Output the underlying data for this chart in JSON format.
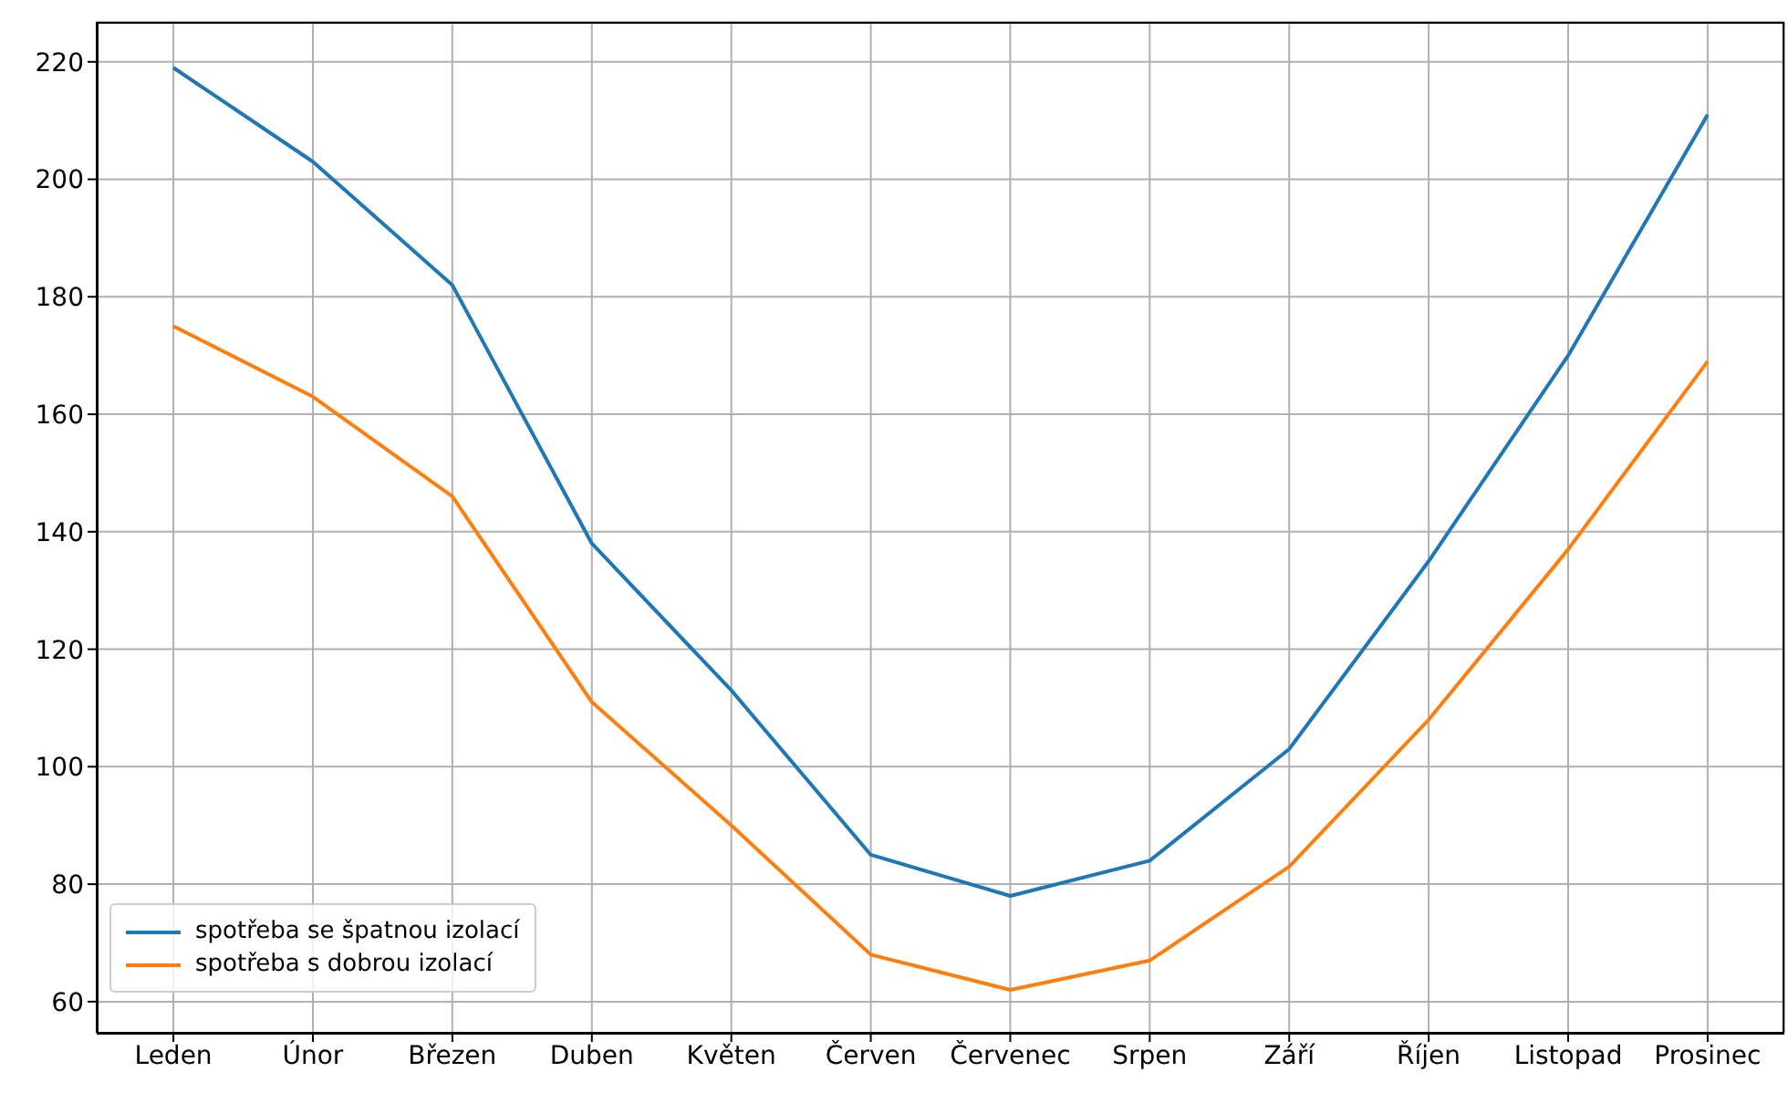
{
  "chart_data": {
    "type": "line",
    "categories": [
      "Leden",
      "Únor",
      "Březen",
      "Duben",
      "Květen",
      "Červen",
      "Červenec",
      "Srpen",
      "Září",
      "Říjen",
      "Listopad",
      "Prosinec"
    ],
    "series": [
      {
        "name": "spotřeba se špatnou izolací",
        "color": "#1f77b4",
        "values": [
          219,
          203,
          182,
          138,
          113,
          85,
          78,
          84,
          103,
          135,
          170,
          211
        ]
      },
      {
        "name": "spotřeba s dobrou izolací",
        "color": "#ff7f0e",
        "values": [
          175,
          163,
          146,
          111,
          90,
          68,
          62,
          67,
          83,
          108,
          137,
          169
        ]
      }
    ],
    "ylim": [
      54.7,
      226.8
    ],
    "yticks": [
      60,
      80,
      100,
      120,
      140,
      160,
      180,
      200,
      220
    ],
    "grid": true,
    "legend": "bottom left",
    "marker": "none",
    "line_style": "solid"
  }
}
